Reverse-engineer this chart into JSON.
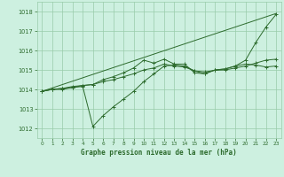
{
  "title": "Graphe pression niveau de la mer (hPa)",
  "bg_color": "#cdf0e0",
  "plot_bg_color": "#cdf0e0",
  "grid_color": "#99ccaa",
  "line_color": "#2d6b2d",
  "xlim": [
    -0.5,
    23.5
  ],
  "ylim": [
    1011.5,
    1018.5
  ],
  "yticks": [
    1012,
    1013,
    1014,
    1015,
    1016,
    1017,
    1018
  ],
  "xticks": [
    0,
    1,
    2,
    3,
    4,
    5,
    6,
    7,
    8,
    9,
    10,
    11,
    12,
    13,
    14,
    15,
    16,
    17,
    18,
    19,
    20,
    21,
    22,
    23
  ],
  "xtick_labels": [
    "0",
    "1",
    "2",
    "3",
    "4",
    "5",
    "6",
    "7",
    "8",
    "9",
    "10",
    "11",
    "12",
    "13",
    "14",
    "15",
    "16",
    "17",
    "18",
    "19",
    "20",
    "21",
    "22",
    "23"
  ],
  "lines": [
    {
      "x": [
        0,
        23
      ],
      "y": [
        1013.9,
        1017.9
      ],
      "marker": false
    },
    {
      "x": [
        0,
        1,
        2,
        3,
        4,
        5,
        6,
        7,
        8,
        9,
        10,
        11,
        12,
        13,
        14,
        15,
        16,
        17,
        18,
        19,
        20,
        21,
        22,
        23
      ],
      "y": [
        1013.9,
        1014.0,
        1014.0,
        1014.1,
        1014.15,
        1012.1,
        1012.65,
        1013.1,
        1013.5,
        1013.9,
        1014.4,
        1014.8,
        1015.2,
        1015.25,
        1015.2,
        1014.95,
        1014.8,
        1015.0,
        1015.05,
        1015.2,
        1015.3,
        1015.25,
        1015.15,
        1015.2
      ],
      "marker": true
    },
    {
      "x": [
        0,
        1,
        2,
        3,
        4,
        5,
        6,
        7,
        8,
        9,
        10,
        11,
        12,
        13,
        14,
        15,
        16,
        17,
        18,
        19,
        20,
        21,
        22,
        23
      ],
      "y": [
        1013.9,
        1014.0,
        1014.05,
        1014.1,
        1014.2,
        1014.25,
        1014.4,
        1014.5,
        1014.65,
        1014.8,
        1015.0,
        1015.1,
        1015.3,
        1015.2,
        1015.15,
        1014.95,
        1014.9,
        1014.98,
        1015.0,
        1015.1,
        1015.2,
        1015.35,
        1015.5,
        1015.55
      ],
      "marker": true
    },
    {
      "x": [
        0,
        1,
        2,
        3,
        4,
        5,
        6,
        7,
        8,
        9,
        10,
        11,
        12,
        13,
        14,
        15,
        16,
        17,
        18,
        19,
        20,
        21,
        22,
        23
      ],
      "y": [
        1013.9,
        1014.0,
        1014.05,
        1014.15,
        1014.2,
        1014.25,
        1014.5,
        1014.65,
        1014.85,
        1015.1,
        1015.5,
        1015.35,
        1015.55,
        1015.3,
        1015.3,
        1014.85,
        1014.8,
        1015.0,
        1015.05,
        1015.2,
        1015.5,
        1016.4,
        1017.2,
        1017.85
      ],
      "marker": true
    }
  ]
}
